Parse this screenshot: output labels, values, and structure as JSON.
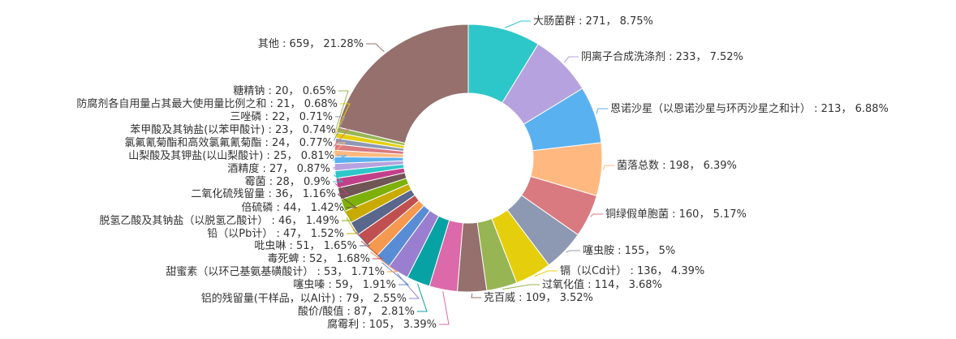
{
  "chart_data": {
    "type": "pie",
    "hole": true,
    "title": "",
    "start_angle_deg": 0,
    "direction": "clockwise",
    "slices": [
      {
        "label": "大肠菌群",
        "value": 271,
        "percent": "8.75%",
        "color": "#2ec7c9"
      },
      {
        "label": "阴离子合成洗涤剂",
        "value": 233,
        "percent": "7.52%",
        "color": "#b6a2de"
      },
      {
        "label": "恩诺沙星（以恩诺沙星与环丙沙星之和计）",
        "value": 213,
        "percent": "6.88%",
        "color": "#5ab1ef"
      },
      {
        "label": "菌落总数",
        "value": 198,
        "percent": "6.39%",
        "color": "#ffb980"
      },
      {
        "label": "铜绿假单胞菌",
        "value": 160,
        "percent": "5.17%",
        "color": "#d87a80"
      },
      {
        "label": "噻虫胺",
        "value": 155,
        "percent": "5%",
        "color": "#8d98b3"
      },
      {
        "label": "镉（以Cd计）",
        "value": 136,
        "percent": "4.39%",
        "color": "#e5cf0d"
      },
      {
        "label": "过氧化值",
        "value": 114,
        "percent": "3.68%",
        "color": "#97b552"
      },
      {
        "label": "克百威",
        "value": 109,
        "percent": "3.52%",
        "color": "#95706d"
      },
      {
        "label": "腐霉利",
        "value": 105,
        "percent": "3.39%",
        "color": "#dc69aa"
      },
      {
        "label": "酸价/酸值",
        "value": 87,
        "percent": "2.81%",
        "color": "#07a2a4"
      },
      {
        "label": "铝的残留量(干样品，以Al计)",
        "value": 79,
        "percent": "2.55%",
        "color": "#9a7fd1"
      },
      {
        "label": "噻虫嗪",
        "value": 59,
        "percent": "1.91%",
        "color": "#588dd5"
      },
      {
        "label": "甜蜜素（以环己基氨基磺酸计）",
        "value": 53,
        "percent": "1.71%",
        "color": "#f5994e"
      },
      {
        "label": "毒死蜱",
        "value": 52,
        "percent": "1.68%",
        "color": "#c05050"
      },
      {
        "label": "吡虫啉",
        "value": 51,
        "percent": "1.65%",
        "color": "#59678c"
      },
      {
        "label": "铅（以Pb计）",
        "value": 47,
        "percent": "1.52%",
        "color": "#c9ab00"
      },
      {
        "label": "脱氢乙酸及其钠盐（以脱氢乙酸计）",
        "value": 46,
        "percent": "1.49%",
        "color": "#7eb00a"
      },
      {
        "label": "倍硫磷",
        "value": 44,
        "percent": "1.42%",
        "color": "#6f5553"
      },
      {
        "label": "二氧化硫残留量",
        "value": 36,
        "percent": "1.16%",
        "color": "#c14089"
      },
      {
        "label": "霉菌",
        "value": 28,
        "percent": "0.9%",
        "color": "#2ec7c9"
      },
      {
        "label": "酒精度",
        "value": 27,
        "percent": "0.87%",
        "color": "#b6a2de"
      },
      {
        "label": "山梨酸及其钾盐(以山梨酸计)",
        "value": 25,
        "percent": "0.81%",
        "color": "#5ab1ef"
      },
      {
        "label": "氯氟氰菊酯和高效氯氟氰菊酯",
        "value": 24,
        "percent": "0.77%",
        "color": "#ffb980"
      },
      {
        "label": "苯甲酸及其钠盐(以苯甲酸计)",
        "value": 23,
        "percent": "0.74%",
        "color": "#d87a80"
      },
      {
        "label": "三唑磷",
        "value": 22,
        "percent": "0.71%",
        "color": "#8d98b3"
      },
      {
        "label": "防腐剂各自用量占其最大使用量比例之和",
        "value": 21,
        "percent": "0.68%",
        "color": "#e5cf0d"
      },
      {
        "label": "糖精钠",
        "value": 20,
        "percent": "0.65%",
        "color": "#97b552"
      },
      {
        "label": "其他",
        "value": 659,
        "percent": "21.28%",
        "color": "#95706d"
      }
    ]
  }
}
